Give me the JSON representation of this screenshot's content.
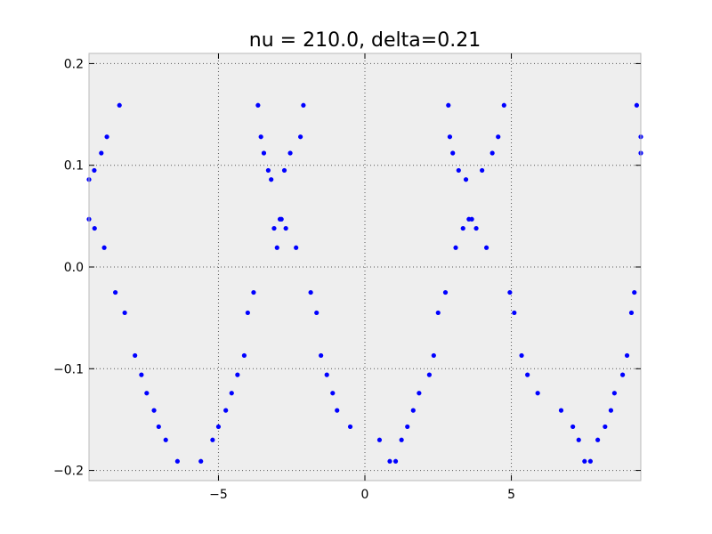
{
  "chart_data": {
    "type": "scatter",
    "title": "nu = 210.0, delta=0.21",
    "xlabel": "",
    "ylabel": "",
    "xlim": [
      -9.42,
      9.42
    ],
    "ylim": [
      -0.21,
      0.21
    ],
    "x_ticks": [
      -5,
      0,
      5
    ],
    "x_tick_labels": [
      "−5",
      "0",
      "5"
    ],
    "y_ticks": [
      -0.2,
      -0.1,
      0.0,
      0.1,
      0.2
    ],
    "y_tick_labels": [
      "−0.2",
      "−0.1",
      "0.0",
      "0.1",
      "0.2"
    ],
    "grid": true,
    "background_color": "#eeeeee",
    "point_color": "#0000ff",
    "series": [
      {
        "x": [
          -9.42,
          -9.42,
          -9.24,
          -9.23,
          -9.0,
          -8.9,
          -8.81,
          -8.52,
          -8.38,
          -8.2,
          -7.85,
          -7.63,
          -7.45,
          -7.2,
          -7.04,
          -6.8,
          -6.4,
          -5.6,
          -5.2,
          -5.0,
          -4.75,
          -4.55,
          -4.35,
          -4.12,
          -4.0,
          -3.8,
          -3.65,
          -3.55,
          -3.45,
          -3.3,
          -3.2,
          -3.1,
          -3.0,
          -2.9,
          -2.85,
          -2.75,
          -2.7,
          -2.55,
          -2.35,
          -2.2,
          -2.1,
          -1.85,
          -1.65,
          -1.5,
          -1.3,
          -1.1,
          -0.95,
          -0.5,
          0.5,
          0.85,
          1.05,
          1.25,
          1.45,
          1.65,
          1.85,
          2.2,
          2.35,
          2.5,
          2.75,
          2.85,
          2.9,
          3.0,
          3.1,
          3.2,
          3.35,
          3.45,
          3.55,
          3.65,
          3.8,
          4.0,
          4.15,
          4.35,
          4.55,
          4.75,
          4.95,
          5.1,
          5.35,
          5.55,
          5.9,
          6.7,
          7.1,
          7.3,
          7.5,
          7.7,
          7.95,
          8.2,
          8.4,
          8.52,
          8.8,
          8.95,
          9.1,
          9.2,
          9.28,
          9.42,
          9.42
        ],
        "y": [
          0.086,
          0.047,
          0.095,
          0.038,
          0.112,
          0.019,
          0.128,
          -0.025,
          0.159,
          -0.045,
          -0.087,
          -0.106,
          -0.124,
          -0.141,
          -0.157,
          -0.17,
          -0.191,
          -0.191,
          -0.17,
          -0.157,
          -0.141,
          -0.124,
          -0.106,
          -0.087,
          -0.045,
          -0.025,
          0.159,
          0.128,
          0.112,
          0.095,
          0.086,
          0.038,
          0.019,
          0.047,
          0.047,
          0.095,
          0.038,
          0.112,
          0.019,
          0.128,
          0.159,
          -0.025,
          -0.045,
          -0.087,
          -0.106,
          -0.124,
          -0.141,
          -0.157,
          -0.17,
          -0.191,
          -0.191,
          -0.17,
          -0.157,
          -0.141,
          -0.124,
          -0.106,
          -0.087,
          -0.045,
          -0.025,
          0.159,
          0.128,
          0.112,
          0.019,
          0.095,
          0.038,
          0.086,
          0.047,
          0.047,
          0.038,
          0.095,
          0.019,
          0.112,
          0.128,
          0.159,
          -0.025,
          -0.045,
          -0.087,
          -0.106,
          -0.124,
          -0.141,
          -0.157,
          -0.17,
          -0.191,
          -0.191,
          -0.17,
          -0.157,
          -0.141,
          -0.124,
          -0.106,
          -0.087,
          -0.045,
          -0.025,
          0.159,
          0.128,
          0.112
        ]
      }
    ]
  }
}
